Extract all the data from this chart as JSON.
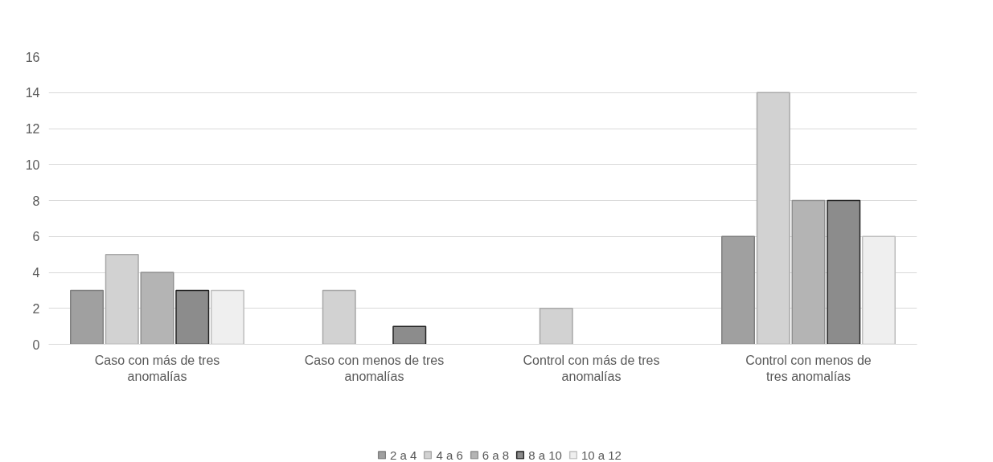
{
  "chart_data": {
    "type": "bar",
    "categories": [
      "Caso con más de tres anomalías",
      "Caso con menos de tres anomalías",
      "Control con más de tres anomalías",
      "Control con menos de tres anomalías"
    ],
    "series": [
      {
        "name": "2 a 4",
        "color": "#a0a0a0",
        "values": [
          3,
          null,
          null,
          6
        ]
      },
      {
        "name": "4 a 6",
        "color": "#d2d2d2",
        "values": [
          5,
          3,
          2,
          14
        ]
      },
      {
        "name": "6 a 8",
        "color": "#b4b4b4",
        "values": [
          4,
          null,
          null,
          8
        ]
      },
      {
        "name": "8 a 10",
        "color": "#8c8c8c",
        "values": [
          3,
          1,
          null,
          8
        ]
      },
      {
        "name": "10 a 12",
        "color": "#efefef",
        "values": [
          3,
          null,
          null,
          6
        ]
      }
    ],
    "ylim": [
      0,
      16
    ],
    "yticks": [
      0,
      2,
      4,
      6,
      8,
      10,
      12,
      14,
      16
    ],
    "grid": "y",
    "legend": "bottom"
  }
}
